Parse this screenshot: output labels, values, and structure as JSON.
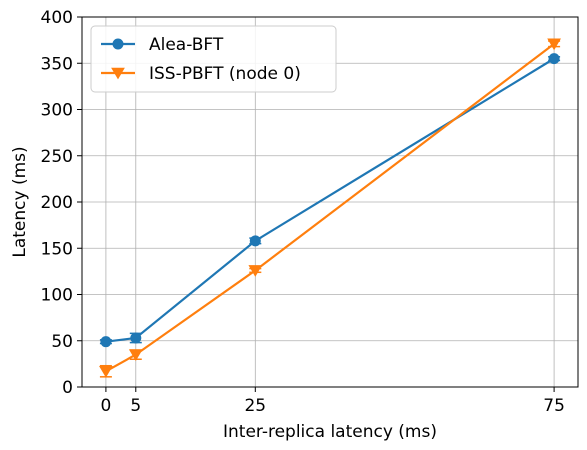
{
  "chart_data": {
    "type": "line",
    "title": "",
    "xlabel": "Inter-replica latency (ms)",
    "ylabel": "Latency (ms)",
    "x": [
      0,
      5,
      25,
      75
    ],
    "xticks": [
      "0",
      "5",
      "25",
      "75"
    ],
    "xlim": [
      -4,
      79
    ],
    "yticks": [
      "0",
      "50",
      "100",
      "150",
      "200",
      "250",
      "300",
      "350",
      "400"
    ],
    "ylim": [
      0,
      400
    ],
    "grid": true,
    "legend": "upper-left",
    "series": [
      {
        "name": "Alea-BFT",
        "color": "#1f77b4",
        "marker": "circle",
        "values": [
          49,
          53,
          158,
          355
        ],
        "errors": [
          2,
          5,
          3,
          2
        ]
      },
      {
        "name": "ISS-PBFT (node 0)",
        "color": "#ff7f0e",
        "marker": "triangle-down",
        "values": [
          17,
          35,
          126,
          371
        ],
        "errors": [
          6,
          5,
          2,
          3
        ]
      }
    ]
  }
}
